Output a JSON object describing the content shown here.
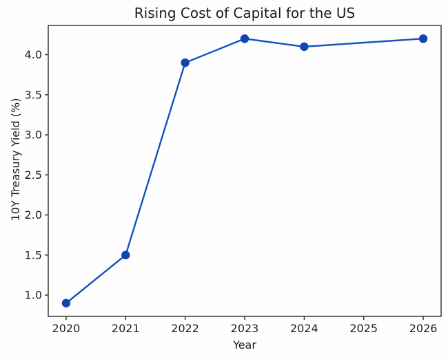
{
  "figure": {
    "background": "#fefefe"
  },
  "chart_data": {
    "type": "line",
    "title": "Rising Cost of Capital for the US",
    "xlabel": "Year",
    "ylabel": "10Y Treasury Yield (%)",
    "x": [
      2020,
      2021,
      2022,
      2023,
      2024,
      2026
    ],
    "y": [
      0.9,
      1.5,
      3.9,
      4.2,
      4.1,
      4.2
    ],
    "xticks": [
      2020,
      2021,
      2022,
      2023,
      2024,
      2025,
      2026
    ],
    "yticks": [
      1.0,
      1.5,
      2.0,
      2.5,
      3.0,
      3.5,
      4.0
    ],
    "xlim": [
      2019.7,
      2026.3
    ],
    "ylim": [
      0.735,
      4.365
    ],
    "grid": false,
    "legend_position": "none",
    "line_color": "#1450bd",
    "marker": "circle",
    "marker_color": "#0f45b2",
    "text_color": "#1c1c1c",
    "spine_color": "#2b2b2b"
  }
}
